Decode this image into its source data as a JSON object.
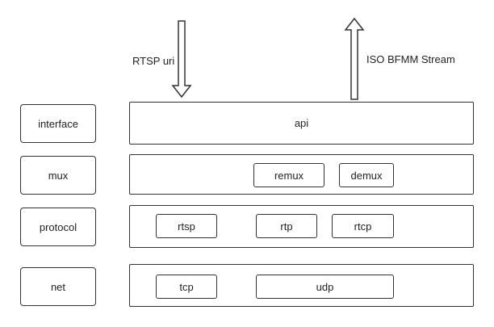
{
  "arrows": {
    "input_label": "RTSP uri",
    "output_label": "ISO BFMM Stream"
  },
  "layers": {
    "interface": {
      "label": "interface",
      "modules": [
        "api"
      ]
    },
    "mux": {
      "label": "mux",
      "modules": [
        "remux",
        "demux"
      ]
    },
    "protocol": {
      "label": "protocol",
      "modules": [
        "rtsp",
        "rtp",
        "rtcp"
      ]
    },
    "net": {
      "label": "net",
      "modules": [
        "tcp",
        "udp"
      ]
    }
  }
}
